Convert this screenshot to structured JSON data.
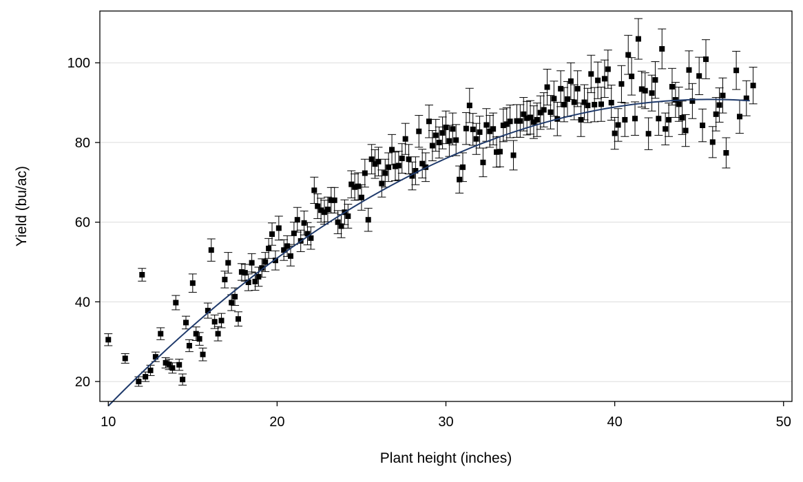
{
  "chart_data": {
    "type": "scatter",
    "title": "",
    "xlabel": "Plant height (inches)",
    "ylabel": "Yield (bu/ac)",
    "xlim": [
      9.5,
      50.5
    ],
    "ylim": [
      15,
      113
    ],
    "x_ticks": [
      10,
      20,
      30,
      40,
      50
    ],
    "y_ticks": [
      20,
      40,
      60,
      80,
      100
    ],
    "x_tick_labels": [
      "10",
      "20",
      "30",
      "40",
      "50"
    ],
    "y_tick_labels": [
      "20",
      "40",
      "60",
      "80",
      "100"
    ],
    "grid": "horizontal",
    "legend": "none",
    "colors": {
      "points": "#000000",
      "fit_line": "#1f3a6b",
      "grid": "#dcdcdc",
      "frame": "#000000"
    },
    "fit_curve": {
      "type": "quadratic",
      "x_range": [
        10,
        48
      ],
      "points": [
        [
          10,
          17
        ],
        [
          14,
          30
        ],
        [
          18,
          42
        ],
        [
          20,
          49
        ],
        [
          22,
          56
        ],
        [
          25,
          64
        ],
        [
          28,
          72
        ],
        [
          30,
          76
        ],
        [
          34,
          84
        ],
        [
          38,
          90
        ],
        [
          41,
          92
        ],
        [
          44,
          91
        ],
        [
          48,
          87
        ]
      ]
    },
    "series": [
      {
        "marker": "square",
        "error_bars": true,
        "points": [
          [
            10.0,
            30.5,
            1.5
          ],
          [
            11.0,
            25.8,
            1.2
          ],
          [
            11.8,
            20.0,
            1.2
          ],
          [
            12.0,
            46.8,
            1.6
          ],
          [
            12.2,
            21.2,
            1.2
          ],
          [
            12.5,
            22.8,
            1.3
          ],
          [
            12.8,
            26.2,
            1.2
          ],
          [
            13.1,
            32.0,
            1.5
          ],
          [
            13.4,
            24.7,
            1.3
          ],
          [
            13.6,
            24.3,
            1.3
          ],
          [
            13.8,
            23.4,
            1.3
          ],
          [
            14.0,
            39.8,
            1.8
          ],
          [
            14.2,
            24.2,
            1.4
          ],
          [
            14.4,
            20.5,
            1.4
          ],
          [
            14.6,
            34.8,
            1.6
          ],
          [
            14.8,
            29.0,
            1.5
          ],
          [
            15.0,
            44.7,
            2.3
          ],
          [
            15.2,
            32.0,
            1.7
          ],
          [
            15.4,
            30.7,
            1.6
          ],
          [
            15.6,
            26.8,
            1.6
          ],
          [
            15.9,
            37.8,
            1.9
          ],
          [
            16.1,
            53.0,
            2.8
          ],
          [
            16.3,
            35.0,
            1.7
          ],
          [
            16.5,
            32.0,
            1.8
          ],
          [
            16.7,
            35.3,
            1.8
          ],
          [
            16.9,
            45.6,
            2.1
          ],
          [
            17.1,
            49.8,
            2.6
          ],
          [
            17.3,
            39.8,
            2.0
          ],
          [
            17.5,
            41.3,
            2.2
          ],
          [
            17.7,
            35.7,
            1.8
          ],
          [
            17.9,
            47.5,
            2.1
          ],
          [
            18.1,
            47.3,
            2.1
          ],
          [
            18.3,
            44.9,
            2.1
          ],
          [
            18.5,
            49.8,
            2.3
          ],
          [
            18.7,
            45.1,
            2.2
          ],
          [
            18.9,
            46.3,
            2.4
          ],
          [
            19.1,
            48.5,
            2.3
          ],
          [
            19.3,
            50.0,
            2.4
          ],
          [
            19.5,
            53.4,
            2.5
          ],
          [
            19.7,
            57.0,
            2.8
          ],
          [
            19.9,
            50.4,
            2.4
          ],
          [
            20.1,
            58.5,
            3.0
          ],
          [
            20.4,
            53.0,
            2.6
          ],
          [
            20.6,
            54.0,
            2.6
          ],
          [
            20.8,
            51.5,
            2.5
          ],
          [
            21.0,
            57.2,
            2.8
          ],
          [
            21.2,
            60.6,
            3.1
          ],
          [
            21.4,
            55.3,
            2.7
          ],
          [
            21.6,
            59.8,
            3.0
          ],
          [
            21.8,
            57.1,
            2.8
          ],
          [
            22.0,
            56.0,
            2.8
          ],
          [
            22.2,
            68.0,
            3.3
          ],
          [
            22.4,
            64.0,
            3.1
          ],
          [
            22.6,
            63.0,
            3.0
          ],
          [
            22.8,
            62.5,
            3.0
          ],
          [
            23.0,
            63.2,
            3.1
          ],
          [
            23.2,
            65.5,
            3.2
          ],
          [
            23.4,
            65.5,
            3.2
          ],
          [
            23.6,
            60.0,
            2.9
          ],
          [
            23.8,
            59.0,
            2.9
          ],
          [
            24.0,
            62.5,
            3.1
          ],
          [
            24.2,
            61.5,
            3.0
          ],
          [
            24.4,
            69.5,
            3.4
          ],
          [
            24.6,
            68.8,
            3.3
          ],
          [
            24.8,
            69.0,
            3.4
          ],
          [
            25.0,
            66.2,
            3.2
          ],
          [
            25.2,
            72.3,
            3.5
          ],
          [
            25.4,
            60.6,
            2.9
          ],
          [
            25.6,
            75.8,
            3.7
          ],
          [
            25.8,
            74.6,
            3.6
          ],
          [
            26.0,
            75.2,
            3.6
          ],
          [
            26.2,
            69.7,
            3.4
          ],
          [
            26.4,
            72.3,
            3.5
          ],
          [
            26.6,
            73.8,
            3.6
          ],
          [
            26.8,
            78.2,
            3.8
          ],
          [
            27.0,
            74.0,
            3.6
          ],
          [
            27.2,
            74.2,
            3.6
          ],
          [
            27.4,
            76.0,
            3.7
          ],
          [
            27.6,
            80.9,
            3.9
          ],
          [
            27.8,
            75.8,
            3.7
          ],
          [
            28.0,
            71.6,
            3.5
          ],
          [
            28.2,
            72.9,
            3.5
          ],
          [
            28.4,
            82.8,
            4.0
          ],
          [
            28.6,
            74.7,
            3.6
          ],
          [
            28.8,
            73.8,
            3.6
          ],
          [
            29.0,
            85.3,
            4.1
          ],
          [
            29.2,
            79.2,
            3.8
          ],
          [
            29.4,
            81.8,
            4.0
          ],
          [
            29.6,
            80.0,
            3.9
          ],
          [
            29.8,
            82.4,
            4.0
          ],
          [
            30.0,
            83.8,
            4.1
          ],
          [
            30.2,
            80.4,
            3.9
          ],
          [
            30.4,
            83.4,
            4.0
          ],
          [
            30.6,
            80.6,
            3.9
          ],
          [
            30.8,
            70.7,
            3.4
          ],
          [
            31.0,
            73.8,
            3.6
          ],
          [
            31.2,
            83.5,
            4.0
          ],
          [
            31.4,
            89.3,
            4.3
          ],
          [
            31.6,
            83.3,
            4.0
          ],
          [
            31.8,
            80.9,
            3.9
          ],
          [
            32.0,
            82.6,
            4.0
          ],
          [
            32.2,
            75.0,
            3.6
          ],
          [
            32.4,
            84.4,
            4.1
          ],
          [
            32.6,
            82.8,
            4.0
          ],
          [
            32.8,
            83.4,
            4.0
          ],
          [
            33.0,
            77.6,
            3.8
          ],
          [
            33.2,
            77.7,
            3.8
          ],
          [
            33.4,
            84.3,
            4.1
          ],
          [
            33.6,
            84.6,
            4.1
          ],
          [
            33.8,
            85.3,
            4.1
          ],
          [
            34.0,
            76.8,
            3.7
          ],
          [
            34.2,
            85.4,
            4.1
          ],
          [
            34.4,
            85.4,
            4.1
          ],
          [
            34.6,
            87.1,
            4.2
          ],
          [
            34.8,
            86.1,
            4.2
          ],
          [
            35.0,
            86.3,
            4.2
          ],
          [
            35.2,
            85.1,
            4.1
          ],
          [
            35.4,
            85.7,
            4.2
          ],
          [
            35.6,
            87.5,
            4.2
          ],
          [
            35.8,
            88.2,
            4.3
          ],
          [
            36.0,
            93.9,
            4.5
          ],
          [
            36.2,
            87.6,
            4.2
          ],
          [
            36.4,
            91.0,
            4.4
          ],
          [
            36.6,
            85.9,
            4.2
          ],
          [
            36.8,
            93.5,
            4.5
          ],
          [
            37.0,
            89.5,
            4.3
          ],
          [
            37.2,
            90.9,
            4.4
          ],
          [
            37.4,
            95.4,
            4.6
          ],
          [
            37.6,
            90.1,
            4.4
          ],
          [
            37.8,
            93.5,
            4.5
          ],
          [
            38.0,
            85.7,
            4.2
          ],
          [
            38.2,
            90.1,
            4.4
          ],
          [
            38.4,
            89.3,
            4.3
          ],
          [
            38.6,
            97.2,
            4.7
          ],
          [
            38.8,
            89.5,
            4.3
          ],
          [
            39.0,
            95.6,
            4.6
          ],
          [
            39.2,
            89.6,
            4.3
          ],
          [
            39.4,
            96.0,
            4.7
          ],
          [
            39.6,
            98.4,
            4.8
          ],
          [
            39.8,
            90.0,
            4.4
          ],
          [
            40.0,
            82.3,
            4.0
          ],
          [
            40.2,
            84.4,
            4.1
          ],
          [
            40.4,
            94.7,
            4.6
          ],
          [
            40.6,
            85.7,
            4.2
          ],
          [
            40.8,
            102.0,
            4.9
          ],
          [
            41.0,
            96.6,
            4.7
          ],
          [
            41.2,
            86.0,
            4.2
          ],
          [
            41.4,
            106.0,
            5.1
          ],
          [
            41.6,
            93.4,
            4.5
          ],
          [
            41.8,
            93.0,
            4.5
          ],
          [
            42.0,
            82.2,
            4.0
          ],
          [
            42.2,
            92.4,
            4.5
          ],
          [
            42.4,
            95.7,
            4.6
          ],
          [
            42.6,
            86.0,
            4.2
          ],
          [
            42.8,
            103.5,
            5.0
          ],
          [
            43.0,
            83.4,
            4.0
          ],
          [
            43.2,
            85.7,
            4.2
          ],
          [
            43.4,
            94.0,
            4.6
          ],
          [
            43.6,
            90.7,
            4.4
          ],
          [
            43.8,
            89.6,
            4.3
          ],
          [
            44.0,
            86.2,
            4.2
          ],
          [
            44.2,
            83.0,
            4.0
          ],
          [
            44.4,
            98.2,
            4.8
          ],
          [
            44.6,
            90.4,
            4.4
          ],
          [
            45.0,
            96.7,
            4.7
          ],
          [
            45.2,
            84.3,
            4.1
          ],
          [
            45.4,
            100.9,
            4.9
          ],
          [
            45.8,
            80.1,
            3.9
          ],
          [
            46.0,
            87.1,
            4.2
          ],
          [
            46.2,
            89.4,
            4.3
          ],
          [
            46.4,
            91.8,
            4.4
          ],
          [
            46.6,
            77.4,
            3.8
          ],
          [
            47.2,
            98.1,
            4.8
          ],
          [
            47.4,
            86.5,
            4.2
          ],
          [
            47.8,
            91.1,
            4.4
          ],
          [
            48.2,
            94.3,
            4.6
          ]
        ]
      }
    ]
  }
}
